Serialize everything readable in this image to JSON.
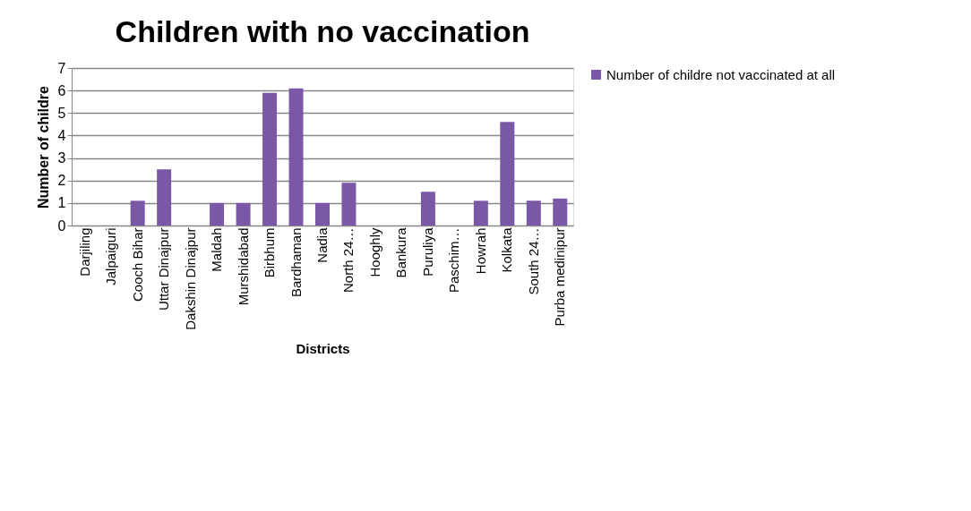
{
  "chart_data": {
    "type": "bar",
    "title": "Children with no vaccination",
    "xlabel": "Districts",
    "ylabel": "Number of childre",
    "categories": [
      "Darjiling",
      "Jalpaiguri",
      "Cooch Bihar",
      "Uttar Dinajpur",
      "Dakshin Dinajpur",
      "Maldah",
      "Murshidabad",
      "Birbhum",
      "Bardhaman",
      "Nadia",
      "North 24…",
      "Hooghly",
      "Bankura",
      "Puruliya",
      "Paschim…",
      "Howrah",
      "Kolkata",
      "South 24…",
      "Purba medinipur"
    ],
    "series": [
      {
        "name": "Number of childre not vaccinated at all",
        "color": "#7b58a6",
        "values": [
          0,
          0,
          1.1,
          2.5,
          0,
          1,
          1,
          5.9,
          6.1,
          1,
          1.9,
          0,
          0,
          1.5,
          0,
          1.1,
          4.6,
          1.1,
          1.2
        ]
      }
    ],
    "ylim": [
      0,
      7
    ],
    "yticks": [
      0,
      1,
      2,
      3,
      4,
      5,
      6,
      7
    ],
    "grid": "y",
    "legend": "right"
  }
}
